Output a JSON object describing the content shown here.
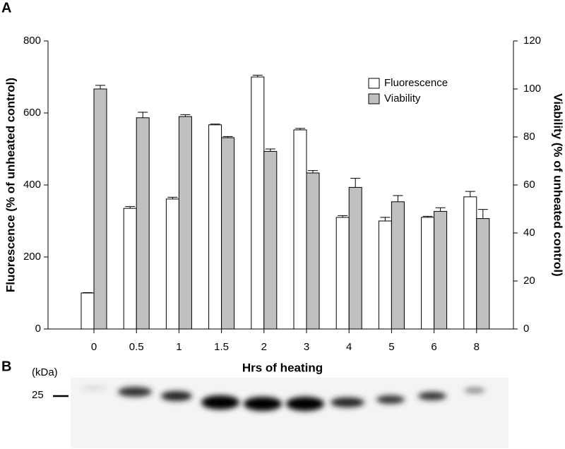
{
  "chart_data": {
    "type": "bar",
    "panel_labels": [
      "A",
      "B"
    ],
    "xlabel": "Hrs of heating",
    "ylabel": "Fluorescence (% of unheated control)",
    "y2label": "Viability (% of unheated control)",
    "categories": [
      "0",
      "0.5",
      "1",
      "1.5",
      "2",
      "3",
      "4",
      "5",
      "6",
      "8"
    ],
    "series": [
      {
        "name": "Fluorescence",
        "color": "#ffffff",
        "axis": "y",
        "values": [
          100,
          335,
          361,
          567,
          700,
          553,
          310,
          300,
          310,
          367
        ],
        "errors": [
          1,
          5,
          5,
          2,
          5,
          4,
          5,
          10,
          3,
          15
        ]
      },
      {
        "name": "Viability",
        "color": "#c0c0c0",
        "axis": "y2",
        "values": [
          100,
          88,
          88.5,
          79.7,
          74,
          65,
          59,
          53,
          49,
          46
        ],
        "errors": [
          1.5,
          2.3,
          0.8,
          0.5,
          1,
          1,
          3.8,
          2.6,
          1.5,
          3.8
        ]
      }
    ],
    "ylim": [
      0,
      800
    ],
    "yticks": [
      0,
      200,
      400,
      600,
      800
    ],
    "y2lim": [
      0,
      120
    ],
    "y2ticks": [
      0,
      20,
      40,
      60,
      80,
      100,
      120
    ],
    "legend": "upper right",
    "blot": {
      "unit_label": "(kDa)",
      "marker_label": "25"
    }
  }
}
